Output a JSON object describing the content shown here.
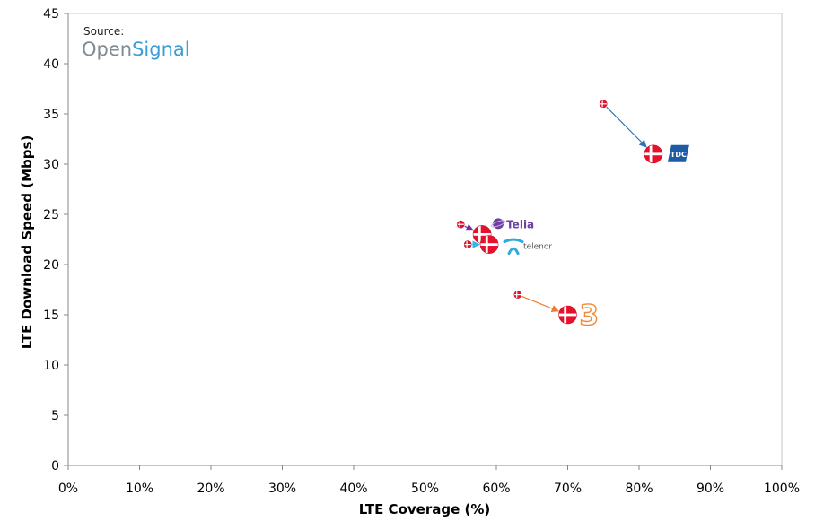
{
  "chart_data": {
    "type": "scatter",
    "title": "",
    "xlabel": "LTE Coverage (%)",
    "ylabel": "LTE Download Speed (Mbps)",
    "xlim": [
      0,
      100
    ],
    "ylim": [
      0,
      45
    ],
    "x_ticks": [
      "0%",
      "10%",
      "20%",
      "30%",
      "40%",
      "50%",
      "60%",
      "70%",
      "80%",
      "90%",
      "100%"
    ],
    "y_ticks": [
      "0",
      "5",
      "10",
      "15",
      "20",
      "25",
      "30",
      "35",
      "40",
      "45"
    ],
    "grid": false,
    "source": {
      "prefix": "Source:",
      "brand_part1": "Open",
      "brand_part2": "Signal"
    },
    "series": [
      {
        "name": "TDC",
        "previous": {
          "x": 75,
          "y": 36
        },
        "current": {
          "x": 82,
          "y": 31
        },
        "arrow_color": "#2e75b6"
      },
      {
        "name": "Telia",
        "previous": {
          "x": 55,
          "y": 24
        },
        "current": {
          "x": 58,
          "y": 23
        },
        "arrow_color": "#7030a0"
      },
      {
        "name": "telenor",
        "previous": {
          "x": 56,
          "y": 22
        },
        "current": {
          "x": 59,
          "y": 22
        },
        "arrow_color": "#31b8e6"
      },
      {
        "name": "3",
        "previous": {
          "x": 63,
          "y": 17
        },
        "current": {
          "x": 70,
          "y": 15
        },
        "arrow_color": "#ed7d31"
      }
    ],
    "colors": {
      "flag_red": "#e8112d",
      "flag_white": "#ffffff",
      "axis": "#888888",
      "tdc_blue": "#1f5aa6",
      "telia_purple": "#6e3fa0",
      "telenor_blue": "#31a8e0",
      "three_orange": "#ed8b3a"
    }
  }
}
